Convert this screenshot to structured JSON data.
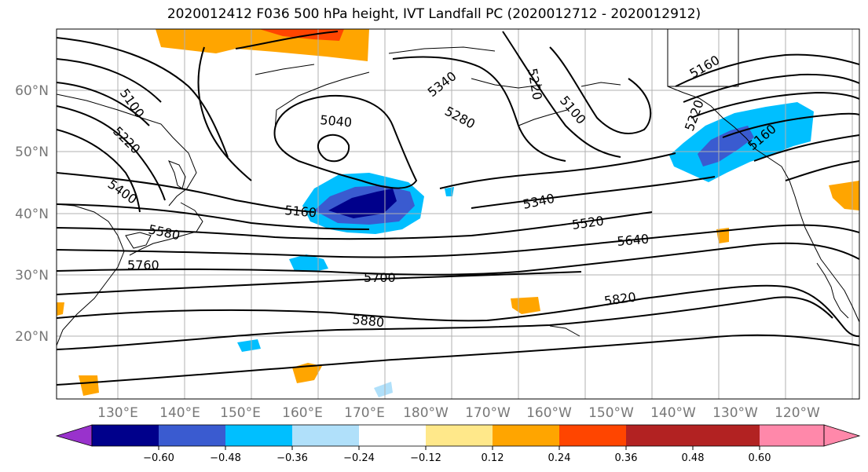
{
  "title": "2020012412 F036 500 hPa height, IVT Landfall PC (2020012712 - 2020012912)",
  "lat_labels": [
    "60°N",
    "50°N",
    "40°N",
    "30°N",
    "20°N"
  ],
  "lon_labels": [
    "130°E",
    "140°E",
    "150°E",
    "160°E",
    "170°E",
    "180°W",
    "170°W",
    "160°W",
    "150°W",
    "140°W",
    "130°W",
    "120°W"
  ],
  "contour_labels": [
    "5100",
    "5220",
    "5400",
    "5580",
    "5760",
    "5160",
    "5040",
    "5340",
    "5280",
    "5220",
    "5100",
    "5160",
    "5220",
    "5160",
    "5340",
    "5520",
    "5640",
    "5700",
    "5820",
    "5880"
  ],
  "colorbar": {
    "ticks": [
      "−0.60",
      "−0.48",
      "−0.36",
      "−0.24",
      "−0.12",
      "0.12",
      "0.24",
      "0.36",
      "0.48",
      "0.60"
    ],
    "colors": [
      "#9932cc",
      "#00008b",
      "#3a5bd0",
      "#00bfff",
      "#b0e0fa",
      "#ffffff",
      "#ffe88a",
      "#ffa500",
      "#ff4500",
      "#b22222",
      "#ff88aa"
    ]
  },
  "palette": {
    "coast": "#000000",
    "grid": "#b0b0b0",
    "contour": "#000000"
  }
}
